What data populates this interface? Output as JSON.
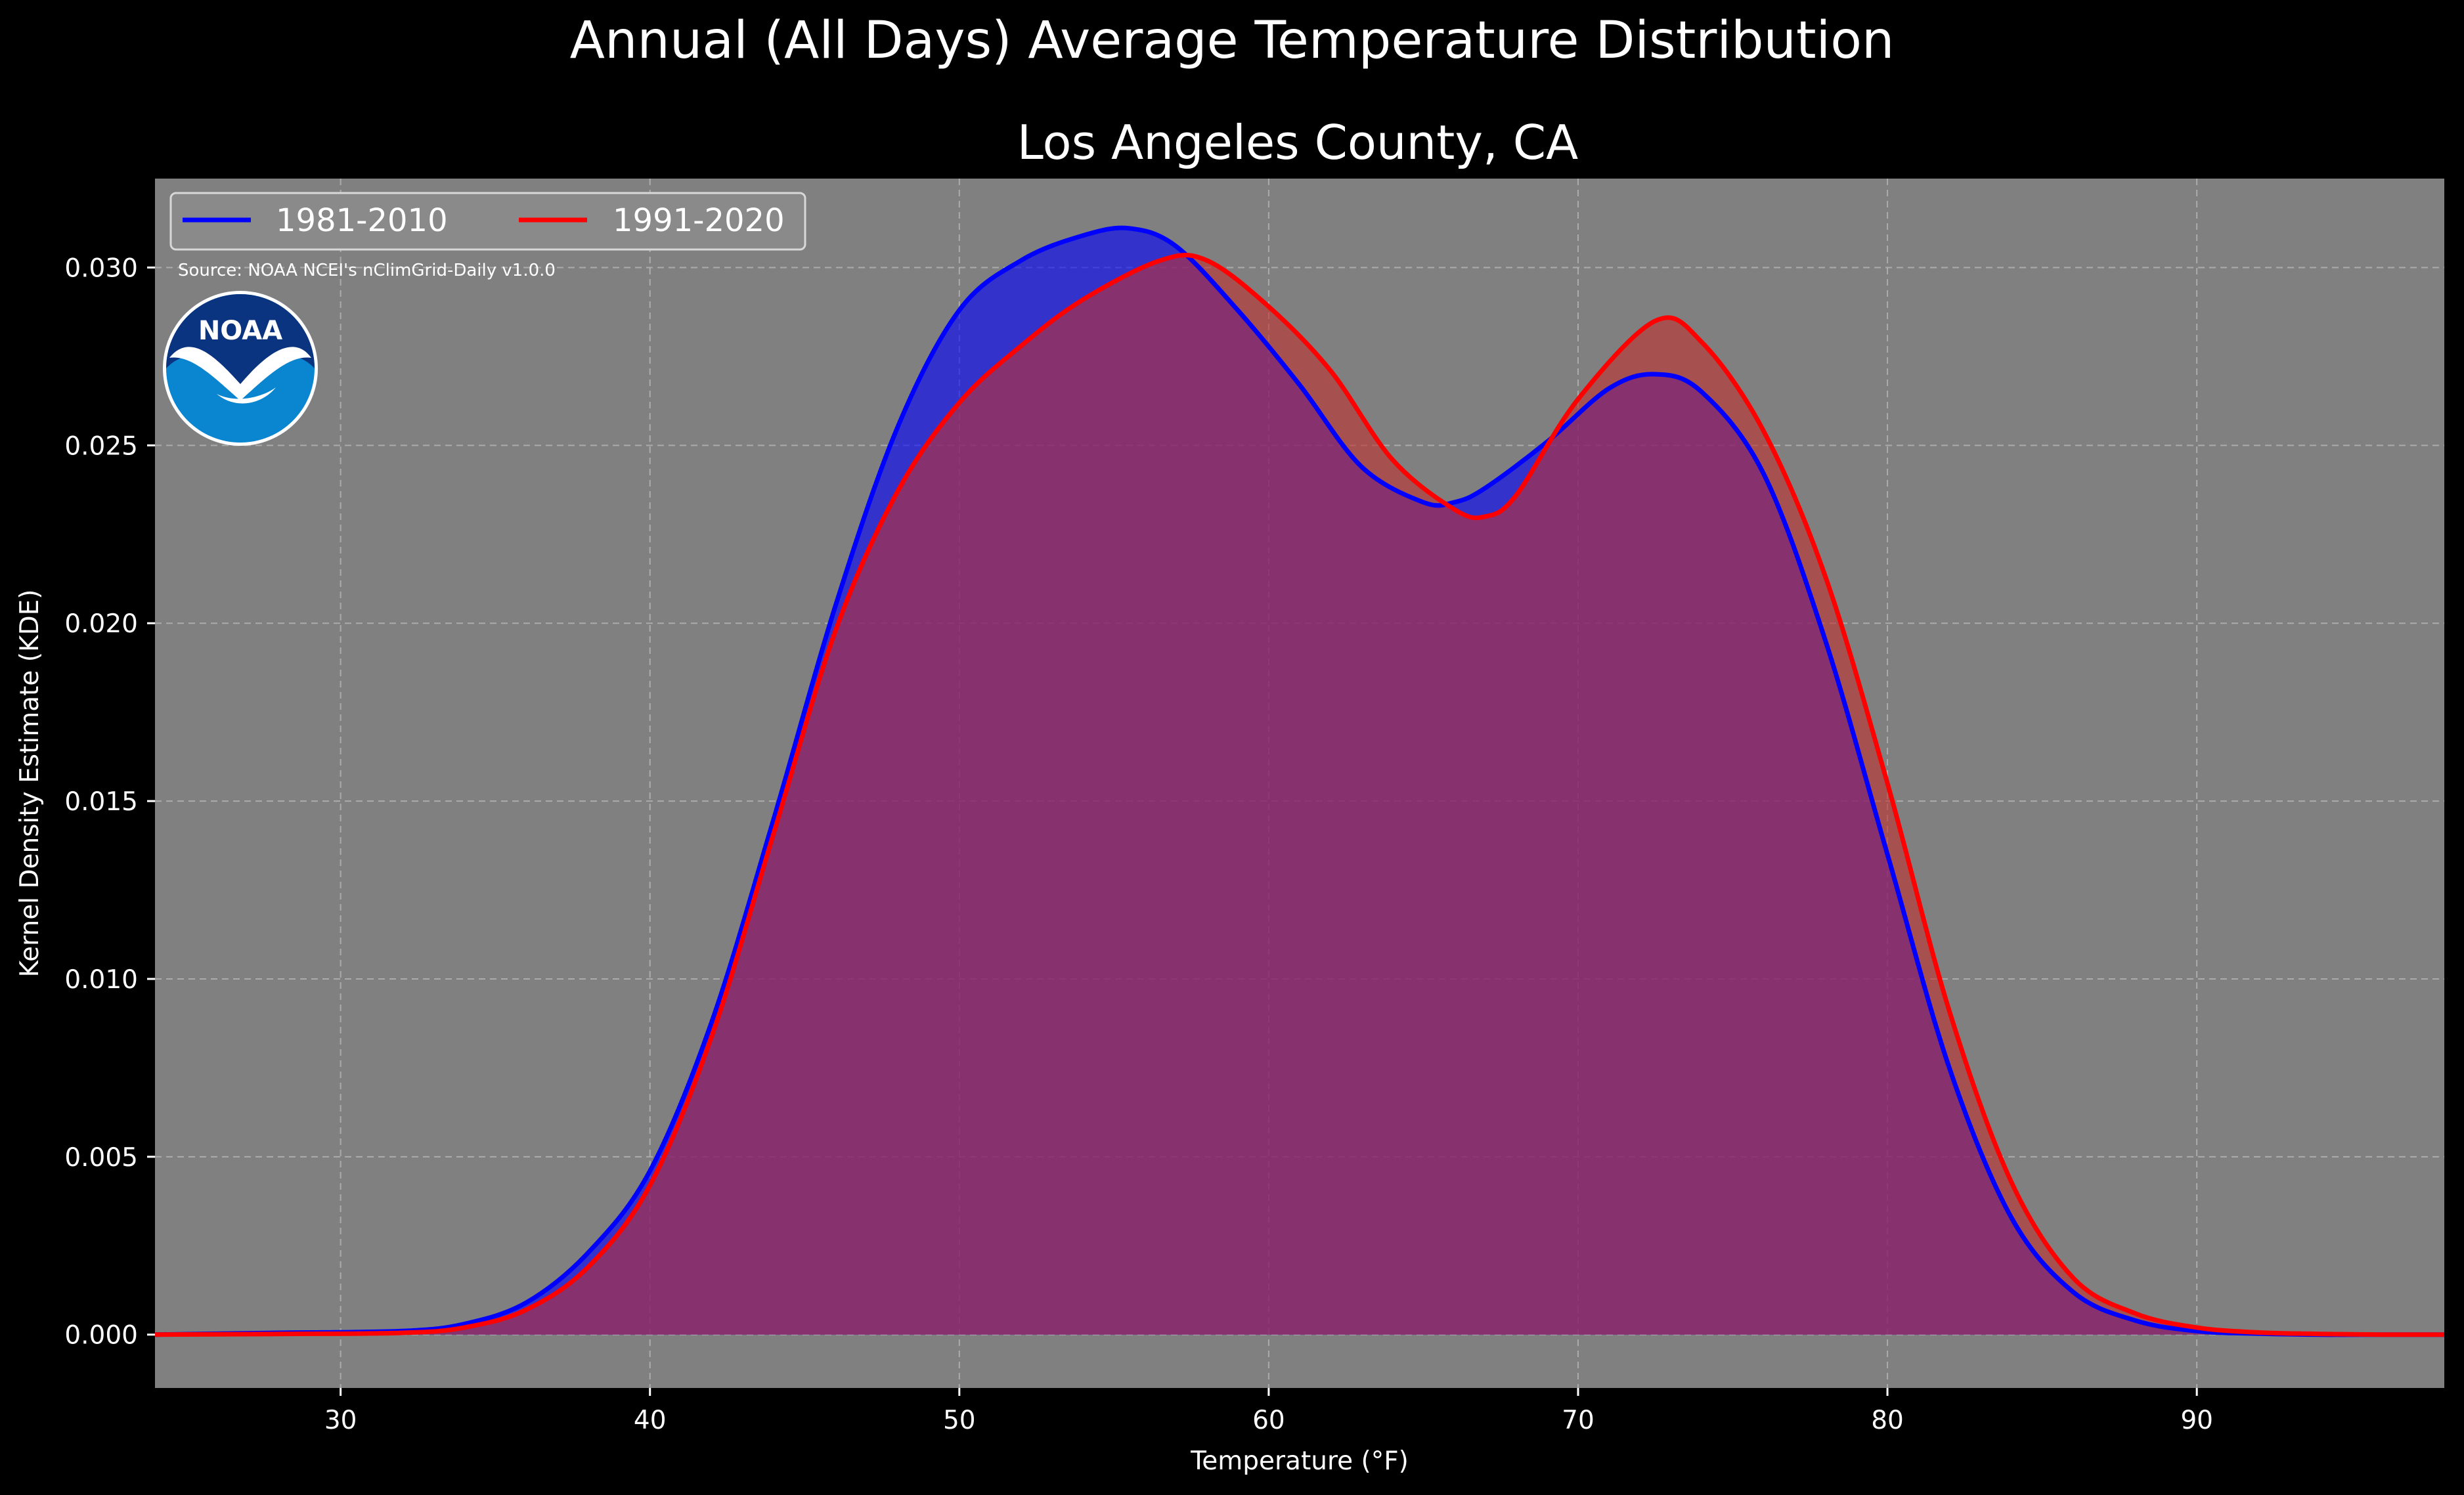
{
  "suptitle": "Annual (All Days) Average Temperature Distribution",
  "source": "Source: NOAA NCEI's nClimGrid-Daily v1.0.0",
  "logo_text": "NOAA",
  "colors": {
    "figure_background": "#000000",
    "plot_background": "#808080",
    "logo_blue_dark": "#0a3480",
    "logo_blue_light": "#0a85d0"
  },
  "chart_data": {
    "type": "area",
    "title": "Los Angeles County, CA",
    "xlabel": "Temperature ($^\\circ$F)",
    "xlabel_display": "Temperature (°F)",
    "ylabel": "Kernel Density Estimate (KDE)",
    "xlim": [
      24,
      98
    ],
    "ylim": [
      -0.0015,
      0.0325
    ],
    "xticks": [
      30,
      40,
      50,
      60,
      70,
      80,
      90
    ],
    "xtick_labels": [
      "30",
      "40",
      "50",
      "60",
      "70",
      "80",
      "90"
    ],
    "yticks": [
      0.0,
      0.005,
      0.01,
      0.015,
      0.02,
      0.025,
      0.03
    ],
    "ytick_labels": [
      "0.000",
      "0.005",
      "0.010",
      "0.015",
      "0.020",
      "0.025",
      "0.030"
    ],
    "grid": true,
    "legend_position": "top-left",
    "series": [
      {
        "name": "1981-2010",
        "color": "#0000ff",
        "fill": "#0000ff",
        "x": [
          24,
          28,
          32,
          34,
          36,
          38,
          40,
          42,
          44,
          46,
          48,
          50,
          52,
          54,
          55.5,
          57,
          59,
          61,
          63,
          65,
          66,
          67,
          69,
          71,
          72.5,
          74,
          76,
          78,
          80,
          82,
          84,
          86,
          88,
          90,
          92,
          94,
          96,
          98
        ],
        "y": [
          0.0,
          5e-05,
          0.0001,
          0.0003,
          0.0009,
          0.0023,
          0.0046,
          0.0088,
          0.0145,
          0.0205,
          0.0255,
          0.0288,
          0.0302,
          0.0309,
          0.0311,
          0.0306,
          0.0288,
          0.0267,
          0.0244,
          0.0234,
          0.0234,
          0.0238,
          0.0251,
          0.0266,
          0.027,
          0.0265,
          0.0242,
          0.0195,
          0.0135,
          0.0075,
          0.0033,
          0.0012,
          0.0004,
          0.0001,
          3e-05,
          0.0,
          0.0,
          0.0
        ]
      },
      {
        "name": "1991-2020",
        "color": "#ff0000",
        "fill": "#c03030",
        "x": [
          24,
          28,
          32,
          34,
          36,
          38,
          40,
          42,
          44,
          46,
          48,
          50,
          52,
          54,
          56.5,
          58,
          60,
          62,
          64,
          66,
          67,
          68,
          70,
          72.5,
          74,
          76,
          78,
          80,
          82,
          84,
          86,
          88,
          90,
          92,
          94,
          96,
          98
        ],
        "y": [
          0.0,
          2e-05,
          5e-05,
          0.0002,
          0.0007,
          0.0019,
          0.0042,
          0.0084,
          0.0141,
          0.0198,
          0.0237,
          0.0262,
          0.0278,
          0.0291,
          0.0302,
          0.0302,
          0.0289,
          0.0271,
          0.0246,
          0.0232,
          0.023,
          0.0236,
          0.0263,
          0.0285,
          0.0279,
          0.0254,
          0.0213,
          0.0155,
          0.0091,
          0.0043,
          0.0016,
          0.0006,
          0.0002,
          6e-05,
          2e-05,
          0.0,
          0.0
        ]
      }
    ]
  }
}
